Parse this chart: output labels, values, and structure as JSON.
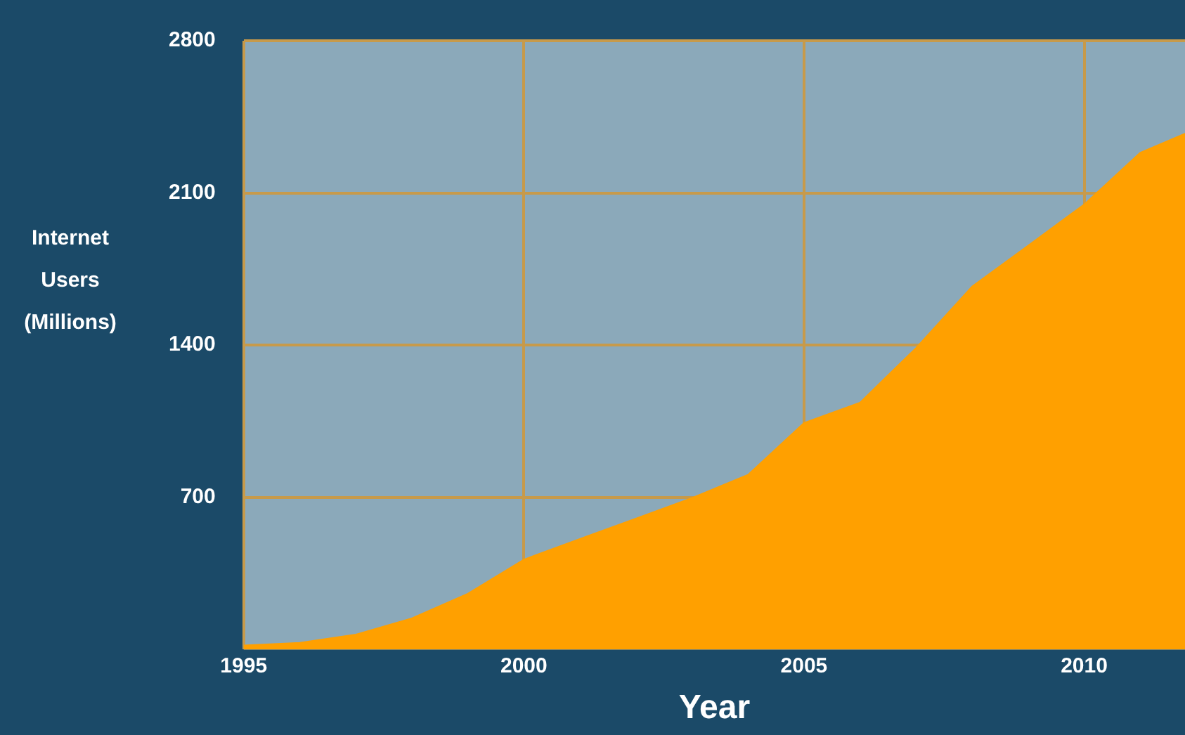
{
  "chart_data": {
    "type": "area",
    "xlabel": "Year",
    "ylabel": "Internet Users (Millions)",
    "x": [
      1995,
      1996,
      1997,
      1998,
      1999,
      2000,
      2001,
      2002,
      2003,
      2004,
      2005,
      2006,
      2007,
      2008,
      2009,
      2010,
      2011,
      2011.8
    ],
    "series": [
      {
        "color": "#ffa000",
        "values": [
          19,
          31,
          69,
          144,
          257,
          414,
          509,
          603,
          697,
          804,
          1042,
          1136,
          1387,
          1670,
          1858,
          2047,
          2285,
          2373
        ]
      }
    ],
    "xlim": [
      1995,
      2011.8
    ],
    "xticks": [
      1995,
      2000,
      2005,
      2010
    ],
    "ylim": [
      0,
      2800
    ],
    "yticks": [
      700,
      1400,
      2100,
      2800
    ],
    "grid": true,
    "marker": "none"
  }
}
